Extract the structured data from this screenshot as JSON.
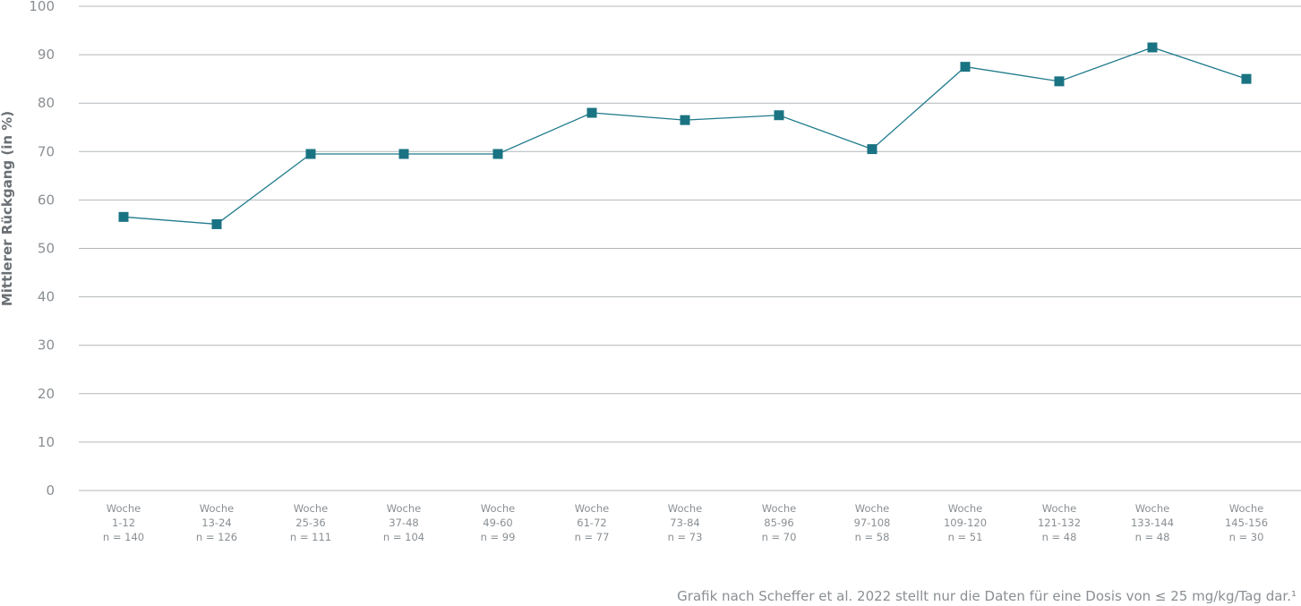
{
  "chart_data": {
    "type": "line",
    "ylabel": "Mittlerer Rückgang (in %)",
    "ylim": [
      0,
      100
    ],
    "yticks": [
      "0",
      "10",
      "20",
      "30",
      "40",
      "50",
      "60",
      "70",
      "80",
      "90",
      "100"
    ],
    "grid": true,
    "categories": [
      {
        "line1": "Woche",
        "line2": "1-12",
        "line3": "n = 140"
      },
      {
        "line1": "Woche",
        "line2": "13-24",
        "line3": "n = 126"
      },
      {
        "line1": "Woche",
        "line2": "25-36",
        "line3": "n = 111"
      },
      {
        "line1": "Woche",
        "line2": "37-48",
        "line3": "n = 104"
      },
      {
        "line1": "Woche",
        "line2": "49-60",
        "line3": "n = 99"
      },
      {
        "line1": "Woche",
        "line2": "61-72",
        "line3": "n = 77"
      },
      {
        "line1": "Woche",
        "line2": "73-84",
        "line3": "n = 73"
      },
      {
        "line1": "Woche",
        "line2": "85-96",
        "line3": "n = 70"
      },
      {
        "line1": "Woche",
        "line2": "97-108",
        "line3": "n = 58"
      },
      {
        "line1": "Woche",
        "line2": "109-120",
        "line3": "n = 51"
      },
      {
        "line1": "Woche",
        "line2": "121-132",
        "line3": "n = 48"
      },
      {
        "line1": "Woche",
        "line2": "133-144",
        "line3": "n = 48"
      },
      {
        "line1": "Woche",
        "line2": "145-156",
        "line3": "n = 30"
      }
    ],
    "values": [
      56.5,
      55,
      69.5,
      69.5,
      69.5,
      78,
      76.5,
      77.5,
      70.5,
      87.5,
      84.5,
      91.5,
      85
    ],
    "colors": {
      "line": "#1f7a8c",
      "marker": "#1a7382",
      "grid": "#b3b7ba"
    }
  },
  "footnote": "Grafik nach Scheffer et al. 2022 stellt nur die Daten für eine Dosis von ≤ 25 mg/kg/Tag dar.¹"
}
